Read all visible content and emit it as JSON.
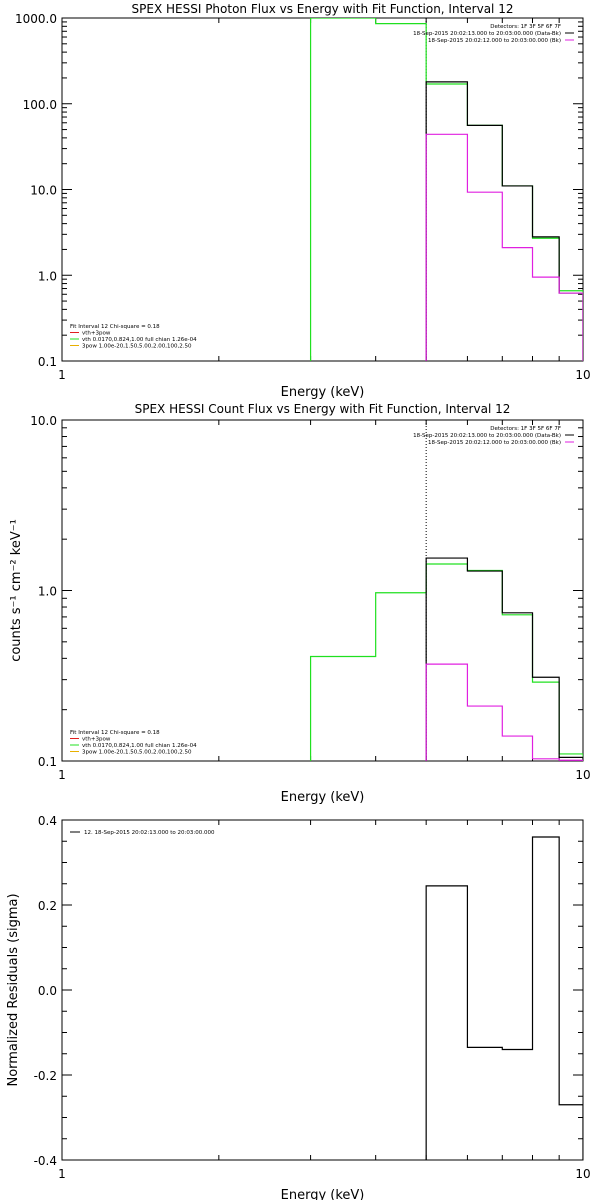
{
  "chart_data": [
    {
      "type": "line",
      "title": "SPEX HESSI Photon Flux vs Energy with Fit Function, Interval 12",
      "xlabel": "Energy (keV)",
      "ylabel": "",
      "xscale": "log",
      "yscale": "log",
      "xlim": [
        1,
        10
      ],
      "ylim": [
        0.1,
        1000
      ],
      "x_ticks": [
        "1",
        "10"
      ],
      "y_ticks": [
        "0.1",
        "1.0",
        "10.0",
        "100.0",
        "1000.0"
      ],
      "marker_x": 5.0,
      "info_lines": [
        "Detectors: 1F 3F 5F 6F 7F",
        "18-Sep-2015 20:02:13.000 to 20:03:00.000 (Data-Bk)",
        "18-Sep-2015 20:02:12.000 to 20:03:00.000 (Bk)"
      ],
      "fit_lines": [
        "Fit Interval 12   Chi-square = 0.18",
        "vth+3pow",
        "vth 0.0170,0.824,1.00  full chian 1.26e-04",
        "3pow 1.00e-20,1.50,5.00,2.00,100,2.50"
      ],
      "series": [
        {
          "name": "18-Sep-2015 20:02:13.000 to 20:03:00.000 (Data-Bk)",
          "color": "#000000",
          "edges": [
            5,
            6,
            7,
            8,
            9,
            10
          ],
          "values": [
            180,
            56,
            11,
            2.8,
            0.62
          ]
        },
        {
          "name": "18-Sep-2015 20:02:12.000 to 20:03:00.000 (Bk)",
          "color": "#e020e0",
          "edges": [
            5,
            6,
            7,
            8,
            9,
            10
          ],
          "values": [
            44,
            9.3,
            2.1,
            0.95,
            0.62
          ]
        },
        {
          "name": "vth+3pow",
          "color": "#20e020",
          "edges": [
            3,
            4,
            5,
            6,
            7,
            8,
            9,
            10
          ],
          "values": [
            1000,
            860,
            170,
            56,
            11,
            2.7,
            0.66
          ]
        }
      ]
    },
    {
      "type": "line",
      "title": "SPEX HESSI Count Flux vs Energy with Fit Function, Interval 12",
      "xlabel": "Energy (keV)",
      "ylabel": "counts s⁻¹ cm⁻² keV⁻¹",
      "xscale": "log",
      "yscale": "log",
      "xlim": [
        1,
        10
      ],
      "ylim": [
        0.1,
        10
      ],
      "x_ticks": [
        "1",
        "10"
      ],
      "y_ticks": [
        "0.1",
        "1.0",
        "10.0"
      ],
      "marker_x": 5.0,
      "info_lines": [
        "Detectors: 1F 3F 5F 6F 7F",
        "18-Sep-2015 20:02:13.000 to 20:03:00.000 (Data-Bk)",
        "18-Sep-2015 20:02:12.000 to 20:03:00.000 (Bk)"
      ],
      "fit_lines": [
        "Fit Interval 12   Chi-square = 0.18",
        "vth+3pow",
        "vth 0.0170,0.824,1.00  full chian 1.26e-04",
        "3pow 1.00e-20,1.50,5.00,2.00,100,2.50"
      ],
      "series": [
        {
          "name": "18-Sep-2015 20:02:13.000 to 20:03:00.000 (Data-Bk)",
          "color": "#000000",
          "edges": [
            5,
            6,
            7,
            8,
            9,
            10
          ],
          "values": [
            1.55,
            1.3,
            0.74,
            0.31,
            0.105
          ]
        },
        {
          "name": "18-Sep-2015 20:02:12.000 to 20:03:00.000 (Bk)",
          "color": "#e020e0",
          "edges": [
            5,
            6,
            7,
            8,
            9,
            10
          ],
          "values": [
            0.37,
            0.21,
            0.14,
            0.103,
            0.101
          ]
        },
        {
          "name": "vth+3pow",
          "color": "#20e020",
          "edges": [
            3,
            4,
            5,
            6,
            7,
            8,
            9,
            10
          ],
          "values": [
            0.41,
            0.97,
            1.43,
            1.31,
            0.72,
            0.29,
            0.11
          ]
        }
      ]
    },
    {
      "type": "line",
      "title": "",
      "xlabel": "Energy (keV)",
      "ylabel": "Normalized Residuals (sigma)",
      "xscale": "log",
      "yscale": "linear",
      "xlim": [
        1,
        10
      ],
      "ylim": [
        -0.4,
        0.4
      ],
      "x_ticks": [
        "1",
        "10"
      ],
      "y_ticks": [
        "-0.4",
        "-0.2",
        "0.0",
        "0.2",
        "0.4"
      ],
      "legend_lines": [
        "12. 18-Sep-2015 20:02:13.000 to 20:03:00.000"
      ],
      "series": [
        {
          "name": "12. 18-Sep-2015 20:02:13.000 to 20:03:00.000",
          "color": "#000000",
          "edges": [
            5,
            6,
            7,
            8,
            9,
            10
          ],
          "values": [
            0.245,
            -0.135,
            -0.14,
            0.36,
            -0.27
          ]
        }
      ]
    }
  ]
}
